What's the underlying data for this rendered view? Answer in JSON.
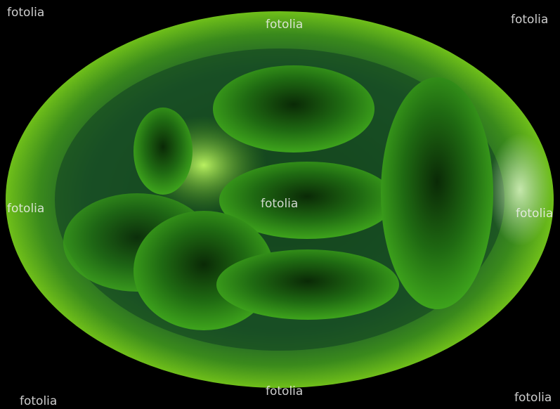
{
  "watermarks": [
    "fotolia",
    "fotolia",
    "fotolia",
    "fotolia",
    "fotolia",
    "fotolia",
    "fotolia",
    "fotolia",
    "fotolia"
  ]
}
